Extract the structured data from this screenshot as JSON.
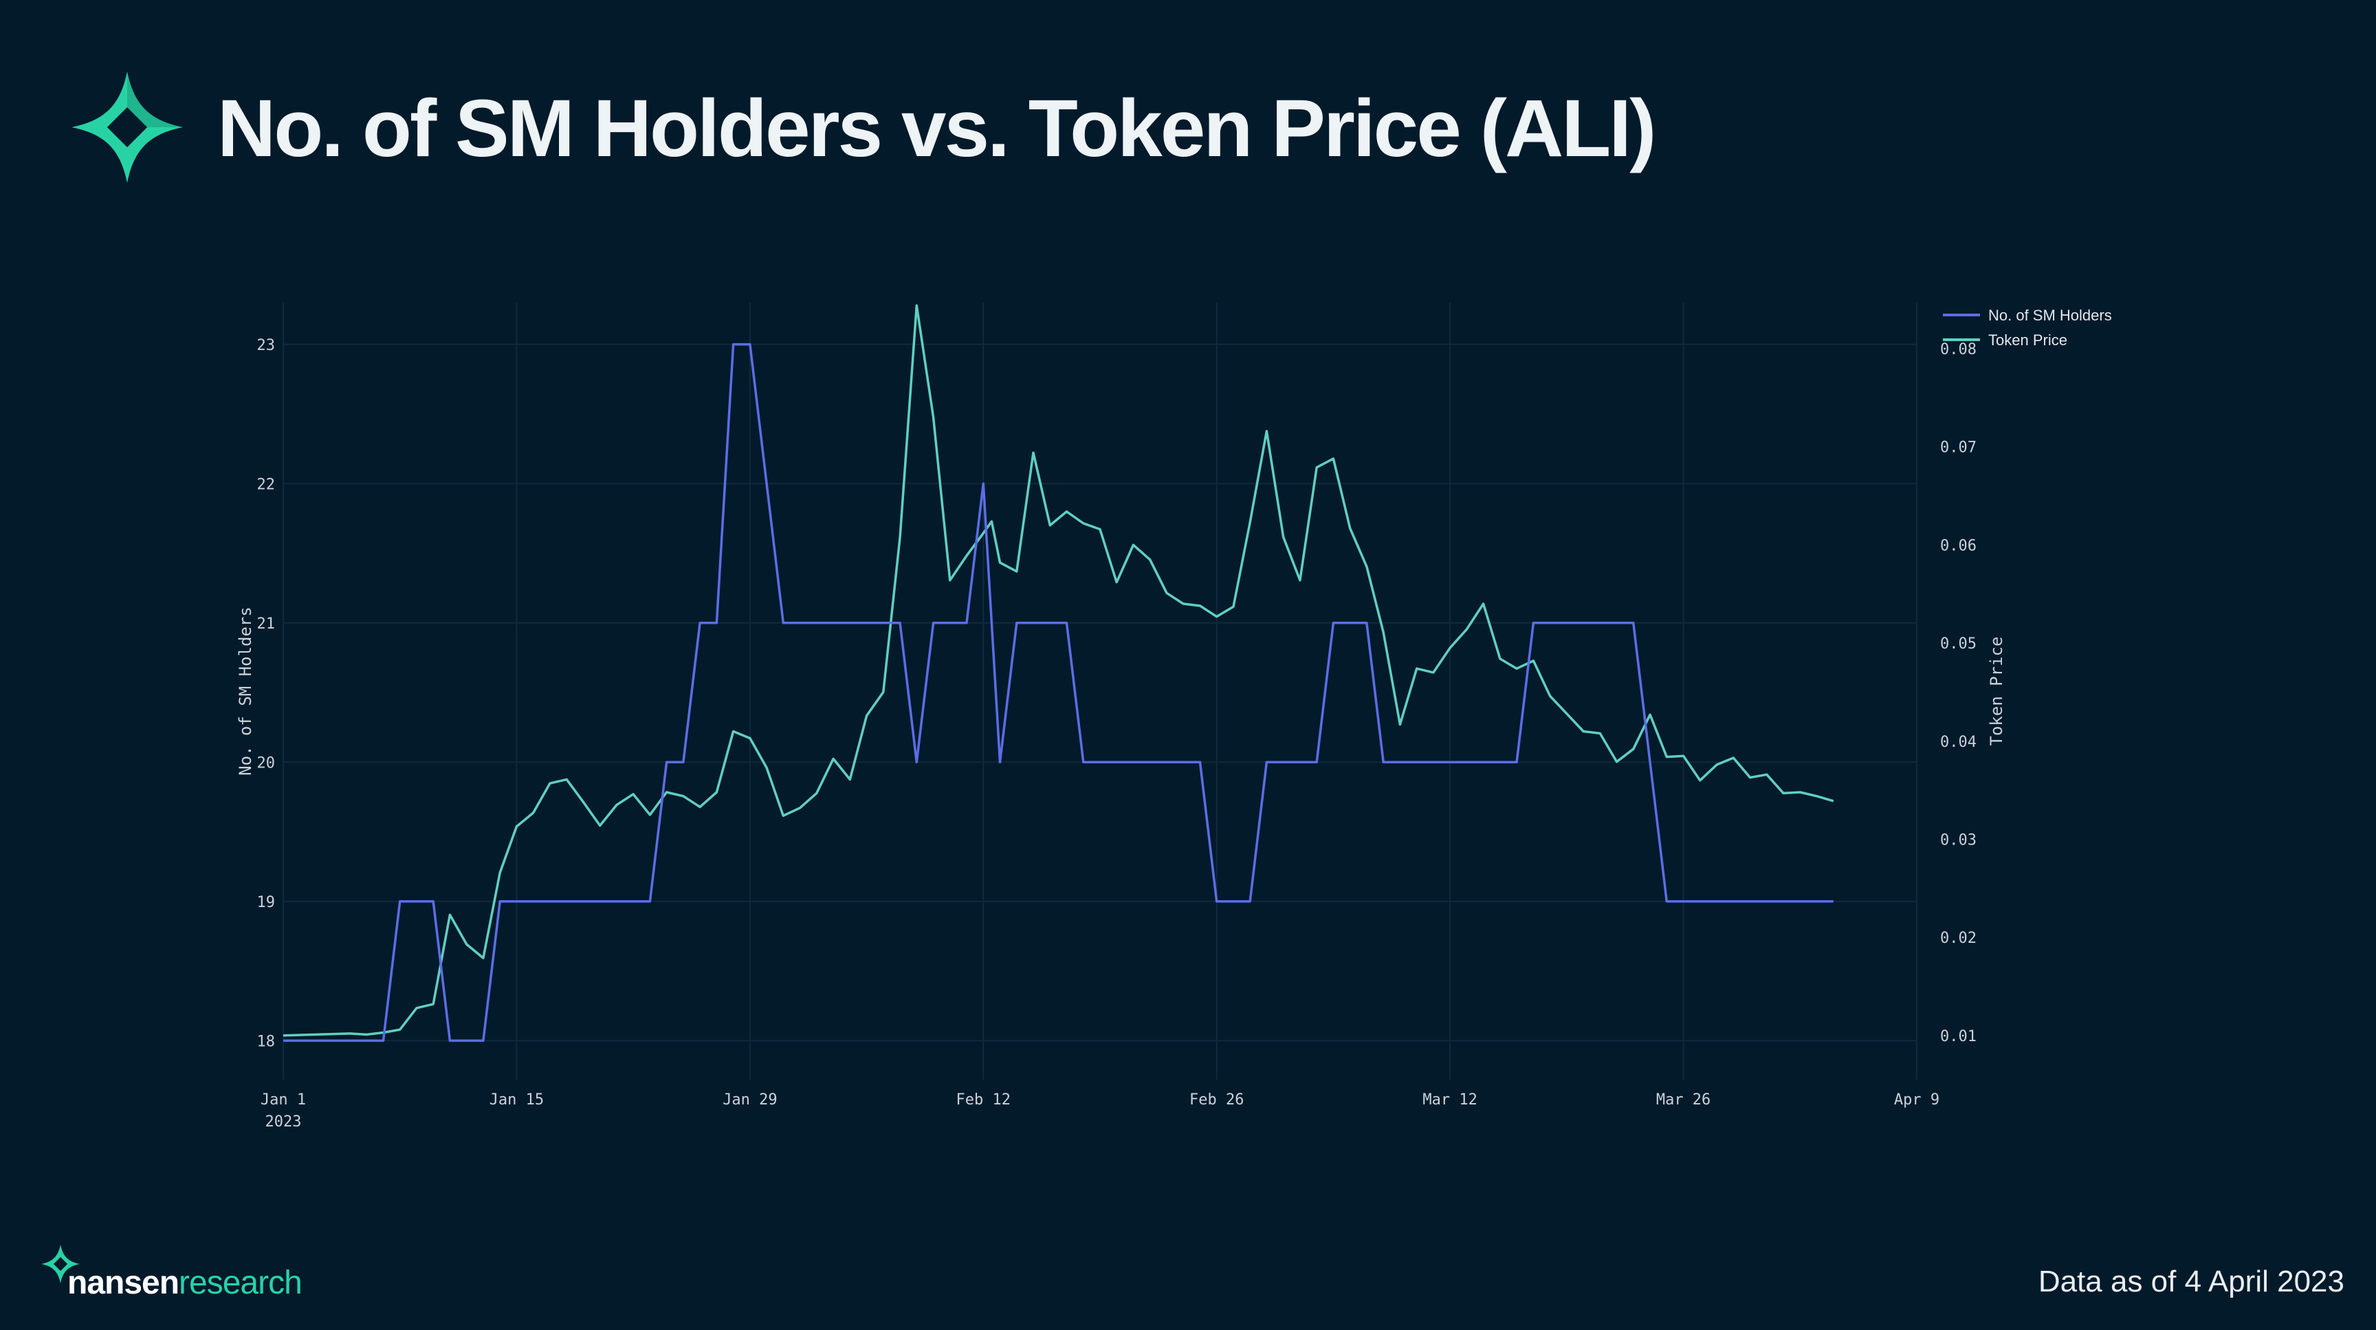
{
  "header": {
    "title": "No. of SM Holders vs. Token Price (ALI)",
    "logo_icon": "nansen-star-icon"
  },
  "footer": {
    "brand_primary": "nansen",
    "brand_secondary": "research",
    "data_note": "Data as of 4 April 2023"
  },
  "colors": {
    "background": "#031a2b",
    "holders": "#5b6ee6",
    "price": "#5fd0c0",
    "accent": "#27d3a5",
    "grid": "#0f2a3d"
  },
  "chart_data": {
    "type": "line",
    "x_ticks": [
      {
        "date": "2023-01-01",
        "label": "Jan 1",
        "sub": "2023"
      },
      {
        "date": "2023-01-15",
        "label": "Jan 15",
        "sub": ""
      },
      {
        "date": "2023-01-29",
        "label": "Jan 29",
        "sub": ""
      },
      {
        "date": "2023-02-12",
        "label": "Feb 12",
        "sub": ""
      },
      {
        "date": "2023-02-26",
        "label": "Feb 26",
        "sub": ""
      },
      {
        "date": "2023-03-12",
        "label": "Mar 12",
        "sub": ""
      },
      {
        "date": "2023-03-26",
        "label": "Mar 26",
        "sub": ""
      },
      {
        "date": "2023-04-09",
        "label": "Apr 9",
        "sub": ""
      }
    ],
    "xlim": [
      "2023-01-01",
      "2023-04-09"
    ],
    "y_left": {
      "label": "No. of SM Holders",
      "ticks": [
        18,
        19,
        20,
        21,
        22,
        23
      ],
      "range": [
        17.72,
        23.3
      ]
    },
    "y_right": {
      "label": "Token Price",
      "ticks": [
        0.01,
        0.02,
        0.03,
        0.04,
        0.05,
        0.06,
        0.07,
        0.08
      ],
      "range": [
        0.0055,
        0.0847
      ]
    },
    "grid": true,
    "legend_position": "top-right",
    "series": [
      {
        "name": "No. of SM Holders",
        "axis": "left",
        "color": "#5b6ee6",
        "points": [
          [
            "2023-01-01",
            18
          ],
          [
            "2023-01-07",
            18
          ],
          [
            "2023-01-08",
            19
          ],
          [
            "2023-01-10",
            19
          ],
          [
            "2023-01-11",
            18
          ],
          [
            "2023-01-13",
            18
          ],
          [
            "2023-01-14",
            19
          ],
          [
            "2023-01-23",
            19
          ],
          [
            "2023-01-24",
            20
          ],
          [
            "2023-01-25",
            20
          ],
          [
            "2023-01-26",
            21
          ],
          [
            "2023-01-27",
            21
          ],
          [
            "2023-01-28",
            23
          ],
          [
            "2023-01-29",
            23
          ],
          [
            "2023-01-31",
            21
          ],
          [
            "2023-02-07",
            21
          ],
          [
            "2023-02-08",
            20
          ],
          [
            "2023-02-09",
            21
          ],
          [
            "2023-02-11",
            21
          ],
          [
            "2023-02-12",
            22
          ],
          [
            "2023-02-13",
            20
          ],
          [
            "2023-02-14",
            21
          ],
          [
            "2023-02-17",
            21
          ],
          [
            "2023-02-18",
            20
          ],
          [
            "2023-02-25",
            20
          ],
          [
            "2023-02-26",
            19
          ],
          [
            "2023-02-28",
            19
          ],
          [
            "2023-03-01",
            20
          ],
          [
            "2023-03-04",
            20
          ],
          [
            "2023-03-05",
            21
          ],
          [
            "2023-03-07",
            21
          ],
          [
            "2023-03-08",
            20
          ],
          [
            "2023-03-16",
            20
          ],
          [
            "2023-03-17",
            21
          ],
          [
            "2023-03-23",
            21
          ],
          [
            "2023-03-25",
            19
          ],
          [
            "2023-04-04",
            19
          ]
        ]
      },
      {
        "name": "Token Price",
        "axis": "right",
        "color": "#5fd0c0",
        "points": [
          [
            "2023-01-01",
            0.01
          ],
          [
            "2023-01-05",
            0.0102
          ],
          [
            "2023-01-06",
            0.0101
          ],
          [
            "2023-01-07",
            0.0103
          ],
          [
            "2023-01-08",
            0.0106
          ],
          [
            "2023-01-09",
            0.0128
          ],
          [
            "2023-01-10",
            0.0132
          ],
          [
            "2023-01-11",
            0.0223
          ],
          [
            "2023-01-12",
            0.0193
          ],
          [
            "2023-01-13",
            0.0179
          ],
          [
            "2023-01-14",
            0.0266
          ],
          [
            "2023-01-15",
            0.0313
          ],
          [
            "2023-01-16",
            0.0327
          ],
          [
            "2023-01-17",
            0.0357
          ],
          [
            "2023-01-18",
            0.0361
          ],
          [
            "2023-01-19",
            0.0338
          ],
          [
            "2023-01-20",
            0.0314
          ],
          [
            "2023-01-21",
            0.0335
          ],
          [
            "2023-01-22",
            0.0346
          ],
          [
            "2023-01-23",
            0.0325
          ],
          [
            "2023-01-24",
            0.0348
          ],
          [
            "2023-01-25",
            0.0344
          ],
          [
            "2023-01-26",
            0.0333
          ],
          [
            "2023-01-27",
            0.0348
          ],
          [
            "2023-01-28",
            0.041
          ],
          [
            "2023-01-29",
            0.0403
          ],
          [
            "2023-01-30",
            0.0373
          ],
          [
            "2023-01-31",
            0.0324
          ],
          [
            "2023-02-01",
            0.0332
          ],
          [
            "2023-02-02",
            0.0347
          ],
          [
            "2023-02-03",
            0.0382
          ],
          [
            "2023-02-04",
            0.0361
          ],
          [
            "2023-02-05",
            0.0426
          ],
          [
            "2023-02-06",
            0.045
          ],
          [
            "2023-02-07",
            0.0608
          ],
          [
            "2023-02-08",
            0.0844
          ],
          [
            "2023-02-09",
            0.073
          ],
          [
            "2023-02-10",
            0.0564
          ],
          [
            "2023-02-11",
            0.0589
          ],
          [
            "2023-02-12",
            0.0612
          ],
          [
            "2023-02-12T12:00",
            0.0624
          ],
          [
            "2023-02-13",
            0.0582
          ],
          [
            "2023-02-14",
            0.0573
          ],
          [
            "2023-02-15",
            0.0694
          ],
          [
            "2023-02-16",
            0.062
          ],
          [
            "2023-02-17",
            0.0634
          ],
          [
            "2023-02-18",
            0.0622
          ],
          [
            "2023-02-19",
            0.0616
          ],
          [
            "2023-02-20",
            0.0562
          ],
          [
            "2023-02-21",
            0.06
          ],
          [
            "2023-02-22",
            0.0585
          ],
          [
            "2023-02-23",
            0.0551
          ],
          [
            "2023-02-24",
            0.054
          ],
          [
            "2023-02-25",
            0.0538
          ],
          [
            "2023-02-26",
            0.0527
          ],
          [
            "2023-02-27",
            0.0537
          ],
          [
            "2023-02-28",
            0.0623
          ],
          [
            "2023-03-01",
            0.0716
          ],
          [
            "2023-03-02",
            0.0608
          ],
          [
            "2023-03-03",
            0.0564
          ],
          [
            "2023-03-04",
            0.0679
          ],
          [
            "2023-03-05",
            0.0688
          ],
          [
            "2023-03-06",
            0.0617
          ],
          [
            "2023-03-07",
            0.0578
          ],
          [
            "2023-03-08",
            0.0511
          ],
          [
            "2023-03-09",
            0.0417
          ],
          [
            "2023-03-10",
            0.0474
          ],
          [
            "2023-03-11",
            0.047
          ],
          [
            "2023-03-12",
            0.0495
          ],
          [
            "2023-03-13",
            0.0514
          ],
          [
            "2023-03-14",
            0.054
          ],
          [
            "2023-03-15",
            0.0484
          ],
          [
            "2023-03-16",
            0.0474
          ],
          [
            "2023-03-17",
            0.0482
          ],
          [
            "2023-03-18",
            0.0446
          ],
          [
            "2023-03-19",
            0.0428
          ],
          [
            "2023-03-20",
            0.041
          ],
          [
            "2023-03-21",
            0.0408
          ],
          [
            "2023-03-22",
            0.0379
          ],
          [
            "2023-03-23",
            0.0392
          ],
          [
            "2023-03-24",
            0.0427
          ],
          [
            "2023-03-25",
            0.0384
          ],
          [
            "2023-03-26",
            0.0385
          ],
          [
            "2023-03-27",
            0.036
          ],
          [
            "2023-03-28",
            0.0376
          ],
          [
            "2023-03-29",
            0.0383
          ],
          [
            "2023-03-30",
            0.0363
          ],
          [
            "2023-03-31",
            0.0366
          ],
          [
            "2023-04-01",
            0.0347
          ],
          [
            "2023-04-02",
            0.0348
          ],
          [
            "2023-04-03",
            0.0344
          ],
          [
            "2023-04-04",
            0.0339
          ]
        ]
      }
    ]
  }
}
